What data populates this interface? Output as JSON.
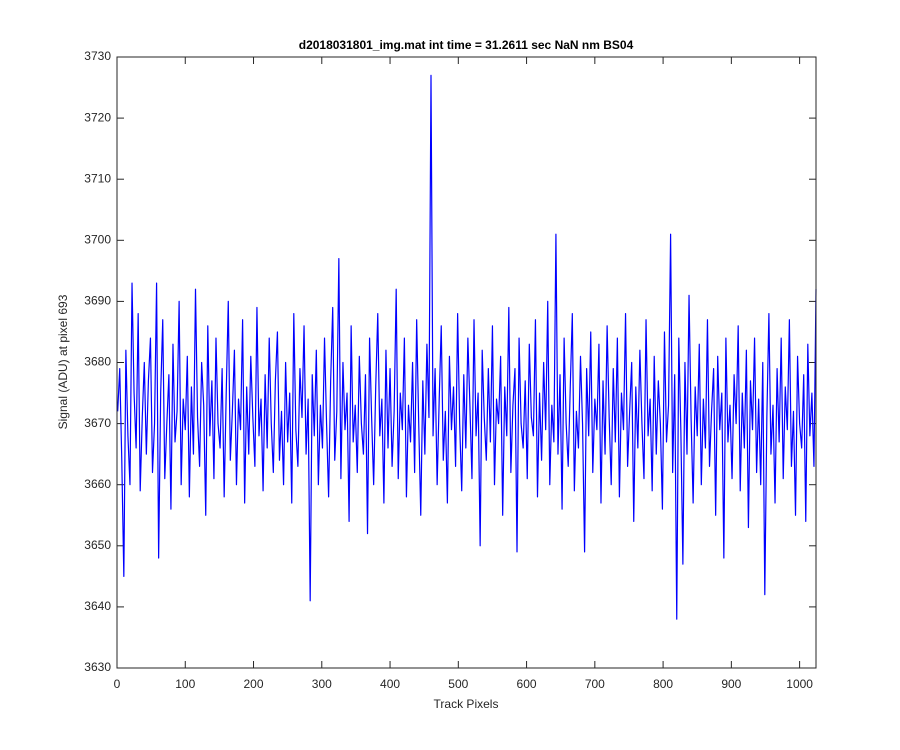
{
  "chart_data": {
    "type": "line",
    "title": "d2018031801_img.mat int time = 31.2611 sec  NaN nm BS04",
    "xlabel": "Track Pixels",
    "ylabel": "Signal (ADU) at pixel 693",
    "xlim": [
      0,
      1024
    ],
    "ylim": [
      3630,
      3730
    ],
    "xticks": [
      0,
      100,
      200,
      300,
      400,
      500,
      600,
      700,
      800,
      900,
      1000
    ],
    "yticks": [
      3630,
      3640,
      3650,
      3660,
      3670,
      3680,
      3690,
      3700,
      3710,
      3720,
      3730
    ],
    "grid": false,
    "x": [
      1,
      4,
      7,
      10,
      13,
      16,
      19,
      22,
      25,
      28,
      31,
      34,
      37,
      40,
      43,
      46,
      49,
      52,
      55,
      58,
      61,
      64,
      67,
      70,
      73,
      76,
      79,
      82,
      85,
      88,
      91,
      94,
      97,
      100,
      103,
      106,
      109,
      112,
      115,
      118,
      121,
      124,
      127,
      130,
      133,
      136,
      139,
      142,
      145,
      148,
      151,
      154,
      157,
      160,
      163,
      166,
      169,
      172,
      175,
      178,
      181,
      184,
      187,
      190,
      193,
      196,
      199,
      202,
      205,
      208,
      211,
      214,
      217,
      220,
      223,
      226,
      229,
      232,
      235,
      238,
      241,
      244,
      247,
      250,
      253,
      256,
      259,
      262,
      265,
      268,
      271,
      274,
      277,
      280,
      283,
      286,
      289,
      292,
      295,
      298,
      301,
      304,
      307,
      310,
      313,
      316,
      319,
      322,
      325,
      328,
      331,
      334,
      337,
      340,
      343,
      346,
      349,
      352,
      355,
      358,
      361,
      364,
      367,
      370,
      373,
      376,
      379,
      382,
      385,
      388,
      391,
      394,
      397,
      400,
      403,
      406,
      409,
      412,
      415,
      418,
      421,
      424,
      427,
      430,
      433,
      436,
      439,
      442,
      445,
      448,
      451,
      454,
      457,
      460,
      463,
      466,
      469,
      472,
      475,
      478,
      481,
      484,
      487,
      490,
      493,
      496,
      499,
      502,
      505,
      508,
      511,
      514,
      517,
      520,
      523,
      526,
      529,
      532,
      535,
      538,
      541,
      544,
      547,
      550,
      553,
      556,
      559,
      562,
      565,
      568,
      571,
      574,
      577,
      580,
      583,
      586,
      589,
      592,
      595,
      598,
      601,
      604,
      607,
      610,
      613,
      616,
      619,
      622,
      625,
      628,
      631,
      634,
      637,
      640,
      643,
      646,
      649,
      652,
      655,
      658,
      661,
      664,
      667,
      670,
      673,
      676,
      679,
      682,
      685,
      688,
      691,
      694,
      697,
      700,
      703,
      706,
      709,
      712,
      715,
      718,
      721,
      724,
      727,
      730,
      733,
      736,
      739,
      742,
      745,
      748,
      751,
      754,
      757,
      760,
      763,
      766,
      769,
      772,
      775,
      778,
      781,
      784,
      787,
      790,
      793,
      796,
      799,
      802,
      805,
      808,
      811,
      814,
      817,
      820,
      823,
      826,
      829,
      832,
      835,
      838,
      841,
      844,
      847,
      850,
      853,
      856,
      859,
      862,
      865,
      868,
      871,
      874,
      877,
      880,
      883,
      886,
      889,
      892,
      895,
      898,
      901,
      904,
      907,
      910,
      913,
      916,
      919,
      922,
      925,
      928,
      931,
      934,
      937,
      940,
      943,
      946,
      949,
      952,
      955,
      958,
      961,
      964,
      967,
      970,
      973,
      976,
      979,
      982,
      985,
      988,
      991,
      994,
      997,
      1000,
      1003,
      1006,
      1009,
      1012,
      1015,
      1018,
      1021,
      1024
    ],
    "series": [
      {
        "color": "#0000ff",
        "values": [
          3672,
          3679,
          3664,
          3645,
          3682,
          3668,
          3660,
          3693,
          3675,
          3666,
          3688,
          3659,
          3671,
          3680,
          3665,
          3677,
          3684,
          3662,
          3670,
          3693,
          3648,
          3675,
          3687,
          3661,
          3670,
          3678,
          3656,
          3683,
          3667,
          3672,
          3690,
          3660,
          3674,
          3669,
          3681,
          3658,
          3676,
          3665,
          3692,
          3671,
          3663,
          3680,
          3673,
          3655,
          3686,
          3668,
          3677,
          3661,
          3684,
          3670,
          3666,
          3679,
          3658,
          3675,
          3690,
          3664,
          3672,
          3682,
          3660,
          3674,
          3669,
          3687,
          3657,
          3676,
          3665,
          3681,
          3671,
          3663,
          3689,
          3668,
          3674,
          3659,
          3678,
          3666,
          3684,
          3670,
          3662,
          3677,
          3685,
          3664,
          3672,
          3660,
          3680,
          3667,
          3675,
          3657,
          3688,
          3669,
          3663,
          3679,
          3671,
          3686,
          3665,
          3674,
          3641,
          3678,
          3668,
          3682,
          3660,
          3673,
          3666,
          3684,
          3670,
          3658,
          3677,
          3689,
          3664,
          3672,
          3697,
          3661,
          3680,
          3669,
          3675,
          3654,
          3686,
          3667,
          3673,
          3662,
          3681,
          3670,
          3665,
          3678,
          3652,
          3684,
          3671,
          3660,
          3676,
          3688,
          3668,
          3674,
          3657,
          3682,
          3666,
          3679,
          3663,
          3672,
          3692,
          3661,
          3675,
          3669,
          3684,
          3658,
          3673,
          3667,
          3680,
          3662,
          3687,
          3670,
          3655,
          3677,
          3665,
          3683,
          3671,
          3727,
          3668,
          3679,
          3660,
          3674,
          3686,
          3664,
          3672,
          3657,
          3681,
          3669,
          3676,
          3663,
          3688,
          3670,
          3659,
          3678,
          3666,
          3684,
          3673,
          3661,
          3687,
          3668,
          3675,
          3650,
          3682,
          3671,
          3664,
          3679,
          3667,
          3686,
          3660,
          3674,
          3670,
          3681,
          3655,
          3676,
          3668,
          3689,
          3662,
          3673,
          3679,
          3649,
          3684,
          3670,
          3666,
          3677,
          3661,
          3683,
          3671,
          3668,
          3687,
          3658,
          3675,
          3664,
          3680,
          3669,
          3690,
          3660,
          3673,
          3667,
          3701,
          3665,
          3678,
          3656,
          3684,
          3670,
          3663,
          3676,
          3688,
          3659,
          3672,
          3666,
          3681,
          3670,
          3649,
          3679,
          3668,
          3685,
          3662,
          3674,
          3669,
          3683,
          3657,
          3677,
          3665,
          3686,
          3671,
          3660,
          3679,
          3667,
          3684,
          3658,
          3675,
          3669,
          3688,
          3663,
          3672,
          3680,
          3654,
          3676,
          3666,
          3682,
          3670,
          3661,
          3687,
          3668,
          3674,
          3659,
          3681,
          3665,
          3677,
          3670,
          3656,
          3685,
          3667,
          3673,
          3701,
          3662,
          3678,
          3638,
          3684,
          3669,
          3647,
          3680,
          3665,
          3691,
          3671,
          3657,
          3676,
          3668,
          3683,
          3660,
          3674,
          3666,
          3687,
          3663,
          3672,
          3679,
          3655,
          3681,
          3669,
          3675,
          3648,
          3684,
          3667,
          3673,
          3661,
          3678,
          3670,
          3686,
          3659,
          3675,
          3666,
          3682,
          3653,
          3677,
          3669,
          3684,
          3662,
          3674,
          3660,
          3680,
          3642,
          3671,
          3688,
          3665,
          3673,
          3657,
          3679,
          3667,
          3684,
          3661,
          3676,
          3669,
          3687,
          3663,
          3672,
          3655,
          3681,
          3670,
          3666,
          3678,
          3654,
          3683,
          3668,
          3675,
          3663,
          3692
        ]
      }
    ]
  }
}
